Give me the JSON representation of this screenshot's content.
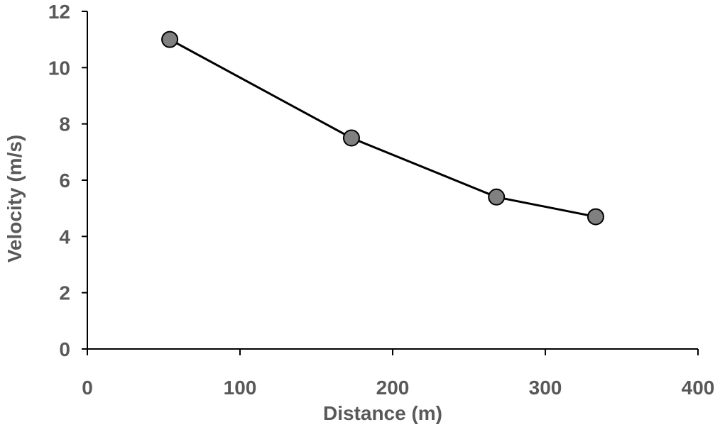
{
  "chart_data": {
    "type": "line",
    "title": "",
    "xlabel": "Distance (m)",
    "ylabel": "Velocity (m/s)",
    "xlim": [
      0,
      400
    ],
    "ylim": [
      0,
      12
    ],
    "xticks": [
      0,
      100,
      200,
      300,
      400
    ],
    "yticks": [
      0,
      2,
      4,
      6,
      8,
      10,
      12
    ],
    "xtick_labels": [
      "0",
      "100",
      "200",
      "300",
      "400"
    ],
    "ytick_labels": [
      "0",
      "2",
      "4",
      "6",
      "8",
      "10",
      "12"
    ],
    "grid": false,
    "legend": false,
    "series": [
      {
        "x": [
          54,
          173,
          268,
          333
        ],
        "y": [
          11.0,
          7.5,
          5.4,
          4.7
        ],
        "marker": "circle",
        "marker_color": "#808080",
        "line_color": "#000000"
      }
    ]
  }
}
